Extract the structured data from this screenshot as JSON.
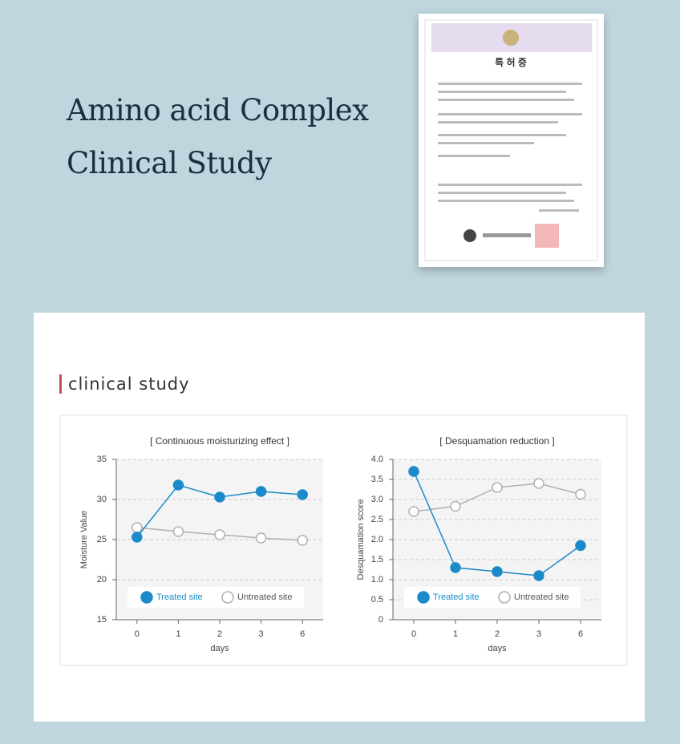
{
  "header": {
    "lines": [
      "Amino acid Complex",
      "Clinical Study"
    ]
  },
  "certificate": {
    "title": "특 허 증"
  },
  "section_title": "clinical study",
  "chart_data": [
    {
      "type": "line",
      "title": "[ Continuous moisturizing effect ]",
      "x_label": "days",
      "y_label": "Moisture Value",
      "categories": [
        "0",
        "1",
        "2",
        "3",
        "6"
      ],
      "series": [
        {
          "name": "Treated site",
          "color": "#1a8bc8",
          "filled": true,
          "values": [
            25.3,
            31.8,
            30.3,
            31.0,
            30.6
          ]
        },
        {
          "name": "Untreated site",
          "color": "#b0b0b0",
          "filled": false,
          "values": [
            26.5,
            26.0,
            25.6,
            25.2,
            24.9
          ]
        }
      ],
      "ylim": [
        15,
        35
      ],
      "yticks": [
        15,
        20,
        25,
        30,
        35
      ],
      "grid": true,
      "legend": "bottom"
    },
    {
      "type": "line",
      "title": "[ Desquamation reduction ]",
      "x_label": "days",
      "y_label": "Desquamation score",
      "categories": [
        "0",
        "1",
        "2",
        "3",
        "6"
      ],
      "series": [
        {
          "name": "Treated site",
          "color": "#1a8bc8",
          "filled": true,
          "values": [
            3.7,
            1.3,
            1.2,
            1.1,
            1.85
          ]
        },
        {
          "name": "Untreated site",
          "color": "#b0b0b0",
          "filled": false,
          "values": [
            2.7,
            2.83,
            3.3,
            3.4,
            3.13
          ]
        }
      ],
      "ylim": [
        0,
        4
      ],
      "yticks": [
        0,
        0.5,
        {
          "value": 1,
          "label": "1.0"
        },
        1.5,
        {
          "value": 2,
          "label": "2.0"
        },
        2.5,
        {
          "value": 3,
          "label": "3.0"
        },
        3.5,
        {
          "value": 4,
          "label": "4.0"
        }
      ],
      "grid": true,
      "legend": "bottom"
    }
  ]
}
